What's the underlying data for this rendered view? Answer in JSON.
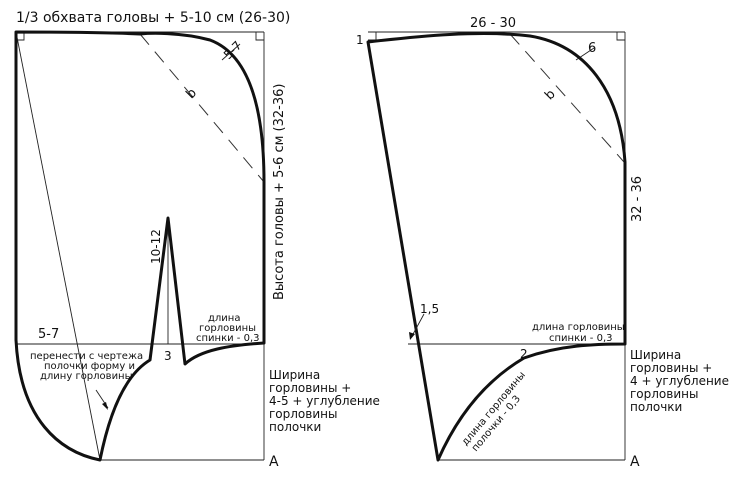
{
  "left_pattern": {
    "top_label": "1/3 обхвата головы + 5-10 см (26-30)",
    "corner_label": "5-7",
    "angle_label": "b",
    "height_label": "Высота головы + 5-6 см (32-36)",
    "dart_height_label": "10-12",
    "dart_width_label": "3",
    "left_label": "5-7",
    "transfer_note_1": "перенести с чертежа",
    "transfer_note_2": "полочки форму и",
    "transfer_note_3": "длину горловины",
    "back_neck_1": "длина",
    "back_neck_2": "горловины",
    "back_neck_3": "спинки - 0,3",
    "width_note_1": "Ширина",
    "width_note_2": "горловины +",
    "width_note_3": "4-5 + углубление",
    "width_note_4": "горловины",
    "width_note_5": "полочки",
    "point_a": "А"
  },
  "right_pattern": {
    "point_1": "1",
    "top_label": "26 - 30",
    "corner_label": "6",
    "angle_label": "b",
    "height_label": "32 - 36",
    "offset_label": "1,5",
    "back_neck_1": "длина горловины",
    "back_neck_2": "спинки - 0,3",
    "point_2": "2",
    "front_neck_1": "длина горловины",
    "front_neck_2": "полочки - 0,3",
    "width_note_1": "Ширина",
    "width_note_2": "горловины +",
    "width_note_3": "4 + углубление",
    "width_note_4": "горловины",
    "width_note_5": "полочки",
    "point_a": "А"
  }
}
